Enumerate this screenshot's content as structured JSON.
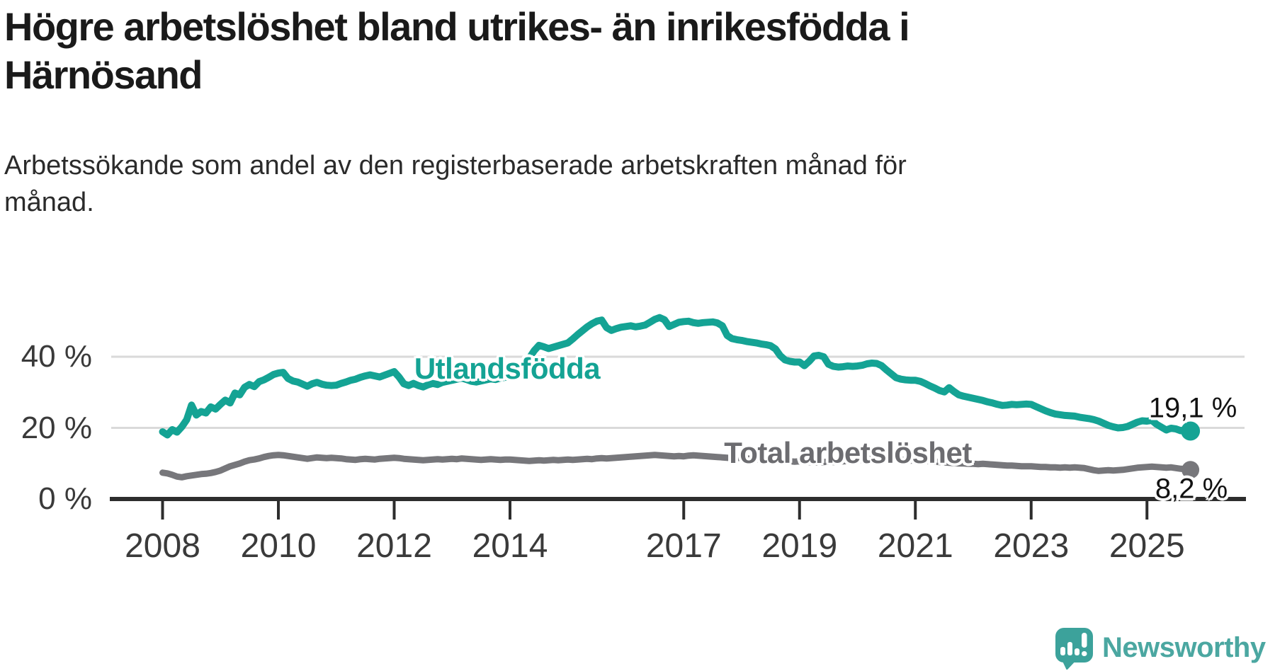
{
  "title": {
    "lines": [
      "Högre arbetslöshet bland utrikes- än inrikesfödda i",
      "Härnösand"
    ]
  },
  "subtitle": {
    "lines": [
      "Arbetssökande som andel av den registerbaserade arbetskraften månad för",
      "månad."
    ]
  },
  "chart_data": {
    "type": "line",
    "x_unit": "monthly",
    "x_start_year": 2008,
    "x_end": "2025-10",
    "ylim": [
      0,
      55
    ],
    "grid": "horizontal",
    "gridline_values": [
      20,
      40
    ],
    "y_ticks": [
      {
        "value": 0,
        "label": "0 %"
      },
      {
        "value": 20,
        "label": "20 %"
      },
      {
        "value": 40,
        "label": "40 %"
      }
    ],
    "x_ticks": [
      {
        "year": 2008,
        "label": "2008"
      },
      {
        "year": 2010,
        "label": "2010"
      },
      {
        "year": 2012,
        "label": "2012"
      },
      {
        "year": 2014,
        "label": "2014"
      },
      {
        "year": 2017,
        "label": "2017"
      },
      {
        "year": 2019,
        "label": "2019"
      },
      {
        "year": 2021,
        "label": "2021"
      },
      {
        "year": 2023,
        "label": "2023"
      },
      {
        "year": 2025,
        "label": "2025"
      }
    ],
    "series": [
      {
        "name": "Utlandsfödda",
        "color": "#14a394",
        "end_value": 19.1,
        "end_label": "19,1 %",
        "values": [
          18.9,
          18.0,
          19.5,
          18.8,
          20.3,
          22.3,
          26.4,
          23.6,
          24.6,
          24.2,
          25.9,
          25.3,
          26.6,
          27.8,
          27.0,
          29.8,
          29.3,
          31.4,
          32.2,
          31.6,
          33.0,
          33.5,
          34.2,
          35.0,
          35.4,
          35.6,
          33.9,
          33.2,
          32.9,
          32.3,
          31.7,
          32.4,
          32.8,
          32.3,
          32.0,
          31.9,
          32.0,
          32.5,
          32.9,
          33.4,
          33.7,
          34.2,
          34.6,
          34.9,
          34.6,
          34.3,
          34.8,
          35.3,
          35.8,
          34.3,
          32.4,
          31.9,
          32.5,
          31.9,
          31.5,
          32.1,
          32.5,
          32.2,
          32.8,
          33.1,
          33.4,
          33.7,
          34.0,
          33.6,
          33.1,
          32.9,
          33.2,
          33.5,
          33.8,
          33.6,
          34.0,
          34.2,
          34.4,
          35.0,
          36.3,
          37.9,
          39.6,
          41.7,
          43.2,
          42.8,
          42.3,
          42.7,
          43.1,
          43.5,
          43.9,
          45.0,
          46.2,
          47.3,
          48.4,
          49.3,
          50.0,
          50.3,
          48.2,
          47.4,
          47.9,
          48.3,
          48.5,
          48.7,
          48.4,
          48.6,
          48.9,
          49.7,
          50.5,
          51.0,
          50.4,
          48.5,
          49.1,
          49.7,
          49.9,
          50.0,
          49.6,
          49.4,
          49.6,
          49.7,
          49.8,
          49.5,
          48.7,
          46.0,
          45.1,
          44.8,
          44.6,
          44.3,
          44.1,
          43.9,
          43.6,
          43.4,
          43.1,
          42.2,
          40.3,
          39.1,
          38.7,
          38.5,
          38.5,
          37.5,
          38.7,
          40.2,
          40.4,
          40.0,
          37.9,
          37.3,
          37.1,
          37.2,
          37.4,
          37.3,
          37.4,
          37.6,
          38.0,
          38.2,
          38.1,
          37.5,
          36.3,
          35.2,
          34.1,
          33.7,
          33.5,
          33.4,
          33.4,
          33.1,
          32.5,
          31.8,
          31.2,
          30.5,
          30.1,
          31.3,
          30.2,
          29.3,
          28.9,
          28.6,
          28.3,
          28.0,
          27.7,
          27.3,
          27.0,
          26.6,
          26.3,
          26.4,
          26.6,
          26.5,
          26.6,
          26.7,
          26.6,
          26.0,
          25.4,
          24.8,
          24.3,
          23.9,
          23.7,
          23.5,
          23.4,
          23.3,
          23.0,
          22.8,
          22.6,
          22.3,
          21.9,
          21.3,
          20.7,
          20.3,
          20.0,
          20.1,
          20.4,
          21.0,
          21.6,
          22.0,
          21.9,
          22.1,
          21.0,
          20.2,
          19.4,
          19.9,
          19.7,
          19.2,
          19.5,
          19.1
        ]
      },
      {
        "name": "Total arbetslöshet",
        "color": "#77777b",
        "end_value": 8.2,
        "end_label": "8,2 %",
        "values": [
          7.4,
          7.2,
          6.8,
          6.3,
          6.1,
          6.4,
          6.6,
          6.8,
          7.0,
          7.1,
          7.3,
          7.6,
          8.0,
          8.6,
          9.2,
          9.6,
          10.0,
          10.5,
          10.9,
          11.1,
          11.4,
          11.8,
          12.1,
          12.3,
          12.4,
          12.3,
          12.1,
          11.9,
          11.7,
          11.5,
          11.3,
          11.5,
          11.7,
          11.6,
          11.5,
          11.6,
          11.5,
          11.4,
          11.2,
          11.1,
          11.0,
          11.2,
          11.3,
          11.2,
          11.1,
          11.3,
          11.4,
          11.5,
          11.6,
          11.5,
          11.3,
          11.2,
          11.1,
          11.0,
          10.9,
          11.0,
          11.1,
          11.2,
          11.1,
          11.2,
          11.3,
          11.2,
          11.4,
          11.3,
          11.2,
          11.1,
          11.0,
          11.1,
          11.2,
          11.1,
          11.0,
          11.1,
          11.1,
          11.0,
          10.9,
          10.8,
          10.7,
          10.8,
          10.9,
          10.8,
          10.9,
          11.0,
          10.9,
          11.0,
          11.1,
          11.0,
          11.1,
          11.2,
          11.3,
          11.2,
          11.4,
          11.5,
          11.4,
          11.5,
          11.6,
          11.7,
          11.8,
          11.9,
          12.0,
          12.1,
          12.2,
          12.3,
          12.4,
          12.3,
          12.2,
          12.1,
          12.0,
          12.1,
          12.0,
          12.2,
          12.3,
          12.2,
          12.1,
          12.0,
          11.9,
          11.8,
          11.7,
          11.6,
          11.5,
          11.6,
          11.5,
          11.4,
          11.3,
          11.2,
          11.1,
          11.0,
          10.9,
          10.8,
          10.7,
          10.6,
          10.6,
          10.5,
          10.6,
          10.5,
          10.4,
          10.3,
          10.3,
          10.4,
          10.5,
          10.4,
          10.5,
          10.6,
          10.7,
          10.8,
          10.9,
          11.0,
          11.2,
          11.4,
          11.5,
          11.4,
          11.3,
          11.2,
          11.1,
          11.0,
          10.9,
          10.8,
          10.9,
          10.8,
          10.7,
          10.6,
          10.5,
          10.4,
          10.3,
          10.2,
          10.1,
          10.0,
          10.0,
          9.9,
          9.9,
          9.8,
          9.9,
          9.8,
          9.7,
          9.6,
          9.5,
          9.4,
          9.4,
          9.3,
          9.2,
          9.2,
          9.2,
          9.1,
          9.0,
          9.0,
          8.9,
          8.9,
          8.8,
          8.9,
          8.8,
          8.9,
          8.8,
          8.7,
          8.4,
          8.1,
          7.9,
          8.0,
          8.1,
          8.0,
          8.1,
          8.2,
          8.4,
          8.6,
          8.8,
          8.9,
          9.0,
          9.1,
          9.0,
          8.9,
          8.8,
          8.9,
          8.7,
          8.5,
          8.4,
          8.2
        ]
      }
    ]
  },
  "colors": {
    "accent_teal": "#14a394",
    "line_gray": "#77777b",
    "axis": "#2d2d2d",
    "gridline": "#dadada",
    "tick_label": "#3a3a3a",
    "logo_teal": "#3ca29b"
  },
  "logo": {
    "text": "Newsworthy"
  }
}
